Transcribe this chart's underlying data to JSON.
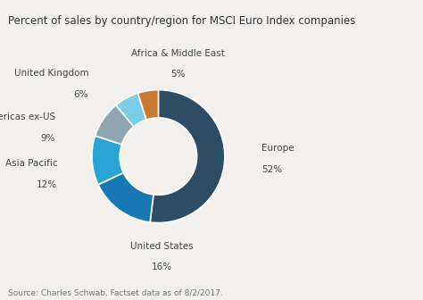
{
  "title": "Percent of sales by country/region for MSCI Euro Index companies",
  "source": "Source: Charles Schwab, Factset data as of 8/2/2017.",
  "labels": [
    "Europe",
    "United States",
    "Asia Pacific",
    "Americas ex-US",
    "United Kingdom",
    "Africa & Middle East"
  ],
  "values": [
    52,
    16,
    12,
    9,
    6,
    5
  ],
  "colors": [
    "#2e4d65",
    "#1878b4",
    "#29a3d4",
    "#8fa5b0",
    "#7dcde8",
    "#c97a30"
  ],
  "title_fontsize": 8.5,
  "source_fontsize": 6.5,
  "label_fontsize": 7.5,
  "background_color": "#f2f1ef"
}
